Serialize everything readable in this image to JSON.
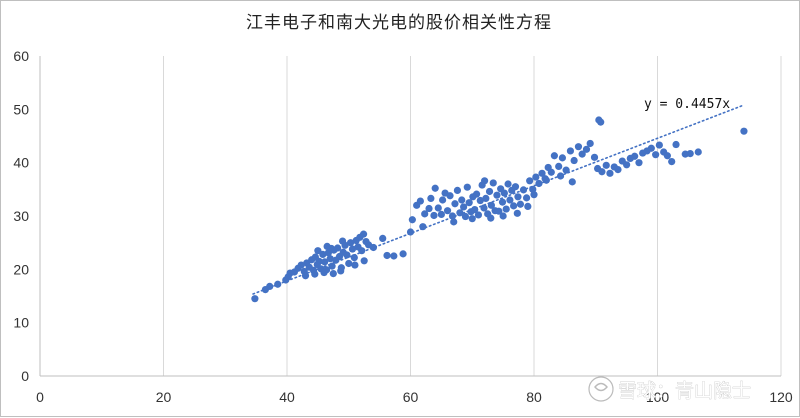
{
  "watermark": {
    "text": "雪球：青山隐士",
    "icon": "snowball-logo-icon"
  },
  "chart_data": {
    "type": "scatter",
    "title": "江丰电子和南大光电的股价相关性方程",
    "xlabel": "",
    "ylabel": "",
    "xlim": [
      0,
      120
    ],
    "ylim": [
      0,
      60
    ],
    "x_ticks": [
      0,
      20,
      40,
      60,
      80,
      100,
      120
    ],
    "y_ticks": [
      0,
      10,
      20,
      30,
      40,
      50,
      60
    ],
    "grid": "vertical major gridlines",
    "marker_color": "#4472c4",
    "trendline": {
      "type": "linear through origin",
      "slope": 0.4457,
      "x_range": [
        34.5,
        114
      ],
      "label": "y = 0.4457x",
      "style": "dotted",
      "color": "#4472c4"
    },
    "points": [
      [
        34.8,
        14.5
      ],
      [
        36.5,
        16.2
      ],
      [
        37.2,
        16.8
      ],
      [
        38.5,
        17.2
      ],
      [
        39.8,
        18.0
      ],
      [
        40.5,
        19.3
      ],
      [
        41.2,
        19.5
      ],
      [
        41.8,
        20.2
      ],
      [
        42.3,
        20.8
      ],
      [
        42.8,
        19.6
      ],
      [
        43.2,
        21.2
      ],
      [
        43.6,
        20.4
      ],
      [
        44.0,
        21.8
      ],
      [
        44.3,
        19.8
      ],
      [
        44.6,
        22.3
      ],
      [
        44.9,
        20.9
      ],
      [
        45.2,
        21.5
      ],
      [
        45.5,
        20.1
      ],
      [
        45.8,
        22.8
      ],
      [
        46.1,
        21.4
      ],
      [
        46.4,
        19.9
      ],
      [
        46.7,
        23.1
      ],
      [
        47.0,
        22.0
      ],
      [
        47.3,
        20.6
      ],
      [
        47.6,
        23.6
      ],
      [
        47.9,
        21.7
      ],
      [
        48.2,
        24.0
      ],
      [
        48.5,
        22.4
      ],
      [
        48.8,
        20.3
      ],
      [
        49.1,
        23.2
      ],
      [
        49.4,
        24.5
      ],
      [
        49.7,
        22.7
      ],
      [
        50.0,
        21.1
      ],
      [
        50.3,
        25.0
      ],
      [
        50.6,
        23.8
      ],
      [
        50.9,
        22.2
      ],
      [
        51.2,
        25.4
      ],
      [
        51.5,
        24.2
      ],
      [
        51.8,
        26.0
      ],
      [
        52.1,
        23.5
      ],
      [
        52.4,
        26.6
      ],
      [
        52.8,
        25.2
      ],
      [
        53.2,
        24.6
      ],
      [
        54.0,
        24.1
      ],
      [
        55.5,
        25.8
      ],
      [
        56.2,
        22.6
      ],
      [
        57.3,
        22.5
      ],
      [
        58.8,
        22.9
      ],
      [
        43.0,
        18.8
      ],
      [
        44.5,
        19.1
      ],
      [
        46.0,
        19.4
      ],
      [
        47.5,
        19.2
      ],
      [
        48.7,
        19.7
      ],
      [
        45.0,
        23.5
      ],
      [
        46.5,
        24.3
      ],
      [
        47.2,
        23.9
      ],
      [
        49.0,
        25.3
      ],
      [
        51.0,
        20.8
      ],
      [
        52.5,
        21.6
      ],
      [
        40.2,
        18.6
      ],
      [
        60.0,
        27.0
      ],
      [
        60.3,
        29.3
      ],
      [
        61.0,
        32.0
      ],
      [
        61.6,
        32.8
      ],
      [
        62.3,
        30.4
      ],
      [
        63.0,
        31.4
      ],
      [
        63.8,
        30.1
      ],
      [
        64.5,
        31.5
      ],
      [
        65.0,
        30.3
      ],
      [
        65.6,
        34.3
      ],
      [
        66.0,
        31.0
      ],
      [
        66.4,
        33.8
      ],
      [
        66.8,
        30.0
      ],
      [
        67.2,
        32.3
      ],
      [
        67.6,
        34.8
      ],
      [
        68.0,
        30.6
      ],
      [
        68.3,
        33.0
      ],
      [
        68.6,
        31.7
      ],
      [
        68.9,
        29.9
      ],
      [
        69.2,
        35.4
      ],
      [
        69.5,
        32.5
      ],
      [
        69.8,
        30.8
      ],
      [
        70.1,
        33.6
      ],
      [
        70.4,
        31.2
      ],
      [
        70.7,
        34.1
      ],
      [
        71.0,
        30.2
      ],
      [
        71.3,
        32.9
      ],
      [
        71.6,
        35.8
      ],
      [
        71.9,
        31.5
      ],
      [
        72.2,
        33.3
      ],
      [
        72.5,
        30.4
      ],
      [
        72.8,
        34.6
      ],
      [
        73.1,
        32.0
      ],
      [
        73.4,
        36.2
      ],
      [
        73.7,
        31.0
      ],
      [
        74.0,
        33.9
      ],
      [
        74.3,
        30.9
      ],
      [
        74.6,
        35.1
      ],
      [
        74.9,
        32.6
      ],
      [
        75.2,
        34.3
      ],
      [
        75.5,
        31.3
      ],
      [
        75.8,
        36.0
      ],
      [
        76.1,
        33.0
      ],
      [
        76.4,
        34.8
      ],
      [
        76.7,
        31.9
      ],
      [
        77.0,
        35.5
      ],
      [
        77.4,
        33.6
      ],
      [
        77.8,
        32.2
      ],
      [
        78.3,
        34.9
      ],
      [
        78.8,
        33.4
      ],
      [
        79.3,
        36.6
      ],
      [
        79.8,
        35.0
      ],
      [
        80.3,
        37.3
      ],
      [
        80.8,
        36.1
      ],
      [
        81.3,
        38.0
      ],
      [
        81.8,
        37.0
      ],
      [
        82.3,
        39.1
      ],
      [
        82.8,
        38.2
      ],
      [
        83.3,
        41.3
      ],
      [
        84.0,
        39.3
      ],
      [
        84.6,
        40.9
      ],
      [
        85.2,
        38.6
      ],
      [
        85.9,
        42.2
      ],
      [
        86.5,
        40.4
      ],
      [
        87.2,
        43.0
      ],
      [
        87.8,
        41.6
      ],
      [
        88.5,
        42.5
      ],
      [
        89.1,
        43.6
      ],
      [
        89.8,
        41.0
      ],
      [
        90.3,
        38.9
      ],
      [
        91.0,
        38.3
      ],
      [
        91.7,
        39.5
      ],
      [
        92.3,
        38.0
      ],
      [
        93.0,
        39.2
      ],
      [
        93.6,
        38.7
      ],
      [
        94.3,
        40.3
      ],
      [
        95.0,
        39.6
      ],
      [
        95.6,
        40.8
      ],
      [
        96.3,
        41.2
      ],
      [
        97.0,
        40.0
      ],
      [
        97.6,
        41.8
      ],
      [
        98.3,
        42.2
      ],
      [
        99.0,
        42.7
      ],
      [
        99.7,
        41.5
      ],
      [
        100.3,
        43.3
      ],
      [
        101.0,
        42.0
      ],
      [
        101.6,
        41.3
      ],
      [
        102.3,
        40.2
      ],
      [
        103.0,
        43.4
      ],
      [
        104.5,
        41.6
      ],
      [
        105.3,
        41.7
      ],
      [
        106.6,
        42.0
      ],
      [
        114.0,
        45.9
      ],
      [
        90.8,
        47.6
      ],
      [
        90.5,
        48.0
      ],
      [
        63.3,
        33.3
      ],
      [
        62.0,
        28.0
      ],
      [
        64.0,
        35.2
      ],
      [
        65.2,
        33.0
      ],
      [
        77.3,
        30.5
      ],
      [
        73.0,
        29.6
      ],
      [
        70.0,
        29.5
      ],
      [
        67.0,
        28.9
      ],
      [
        75.0,
        30.0
      ],
      [
        79.0,
        31.8
      ],
      [
        82.0,
        36.7
      ],
      [
        84.3,
        37.5
      ],
      [
        86.2,
        36.4
      ],
      [
        80.0,
        34.0
      ],
      [
        72.0,
        36.6
      ]
    ]
  }
}
